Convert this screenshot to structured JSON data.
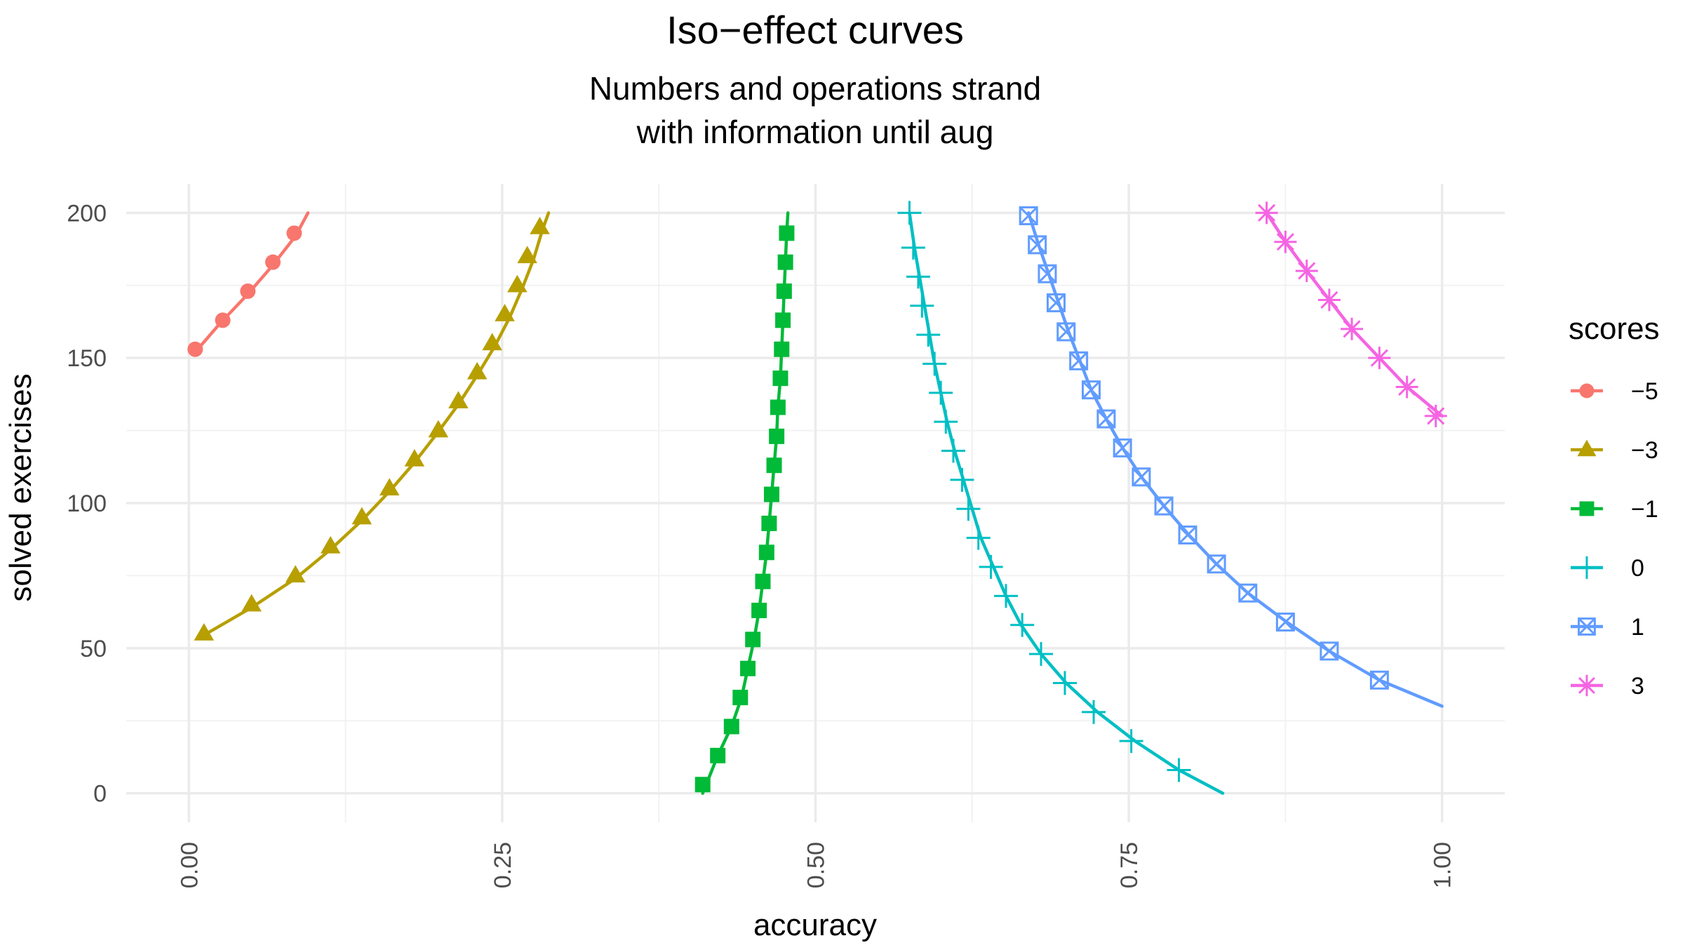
{
  "chart_data": {
    "type": "line",
    "title": "Iso−effect curves",
    "subtitle_lines": [
      "Numbers and operations strand",
      "with information until aug"
    ],
    "xlabel": "accuracy",
    "ylabel": "solved exercises",
    "xlim": [
      -0.05,
      1.05
    ],
    "ylim": [
      -10,
      210
    ],
    "x_ticks": [
      0.0,
      0.25,
      0.5,
      0.75,
      1.0
    ],
    "x_tick_labels": [
      "0.00",
      "0.25",
      "0.50",
      "0.75",
      "1.00"
    ],
    "y_ticks": [
      0,
      50,
      100,
      150,
      200
    ],
    "y_tick_labels": [
      "0",
      "50",
      "100",
      "150",
      "200"
    ],
    "grid": true,
    "legend": {
      "title": "scores",
      "position": "right"
    },
    "series": [
      {
        "name": "−5",
        "color": "#F8766D",
        "marker": "circle",
        "line": [
          [
            0.005,
            152
          ],
          [
            0.025,
            162
          ],
          [
            0.047,
            172
          ],
          [
            0.067,
            182
          ],
          [
            0.085,
            192
          ],
          [
            0.095,
            200
          ]
        ],
        "points": [
          [
            0.005,
            153
          ],
          [
            0.027,
            163
          ],
          [
            0.047,
            173
          ],
          [
            0.067,
            183
          ],
          [
            0.084,
            193
          ]
        ]
      },
      {
        "name": "−3",
        "color": "#B79F00",
        "marker": "triangle",
        "line": [
          [
            0.01,
            54
          ],
          [
            0.05,
            64
          ],
          [
            0.085,
            74
          ],
          [
            0.113,
            84
          ],
          [
            0.138,
            94
          ],
          [
            0.16,
            104
          ],
          [
            0.18,
            114
          ],
          [
            0.198,
            124
          ],
          [
            0.215,
            134
          ],
          [
            0.23,
            144
          ],
          [
            0.244,
            154
          ],
          [
            0.256,
            164
          ],
          [
            0.266,
            174
          ],
          [
            0.275,
            184
          ],
          [
            0.282,
            194
          ],
          [
            0.287,
            200
          ]
        ],
        "points": [
          [
            0.012,
            55
          ],
          [
            0.05,
            65
          ],
          [
            0.085,
            75
          ],
          [
            0.113,
            85
          ],
          [
            0.138,
            95
          ],
          [
            0.16,
            105
          ],
          [
            0.18,
            115
          ],
          [
            0.199,
            125
          ],
          [
            0.215,
            135
          ],
          [
            0.23,
            145
          ],
          [
            0.242,
            155
          ],
          [
            0.252,
            165
          ],
          [
            0.262,
            175
          ],
          [
            0.27,
            185
          ],
          [
            0.28,
            195
          ]
        ]
      },
      {
        "name": "−1",
        "color": "#00BA38",
        "marker": "square",
        "line": [
          [
            0.41,
            0
          ],
          [
            0.422,
            13
          ],
          [
            0.433,
            23
          ],
          [
            0.441,
            33
          ],
          [
            0.446,
            43
          ],
          [
            0.451,
            53
          ],
          [
            0.455,
            63
          ],
          [
            0.458,
            73
          ],
          [
            0.461,
            83
          ],
          [
            0.463,
            93
          ],
          [
            0.465,
            103
          ],
          [
            0.467,
            113
          ],
          [
            0.469,
            123
          ],
          [
            0.47,
            133
          ],
          [
            0.472,
            143
          ],
          [
            0.473,
            153
          ],
          [
            0.474,
            163
          ],
          [
            0.475,
            173
          ],
          [
            0.476,
            183
          ],
          [
            0.477,
            193
          ],
          [
            0.478,
            200
          ]
        ],
        "points": [
          [
            0.41,
            3
          ],
          [
            0.422,
            13
          ],
          [
            0.433,
            23
          ],
          [
            0.44,
            33
          ],
          [
            0.446,
            43
          ],
          [
            0.45,
            53
          ],
          [
            0.455,
            63
          ],
          [
            0.458,
            73
          ],
          [
            0.461,
            83
          ],
          [
            0.463,
            93
          ],
          [
            0.465,
            103
          ],
          [
            0.467,
            113
          ],
          [
            0.469,
            123
          ],
          [
            0.47,
            133
          ],
          [
            0.472,
            143
          ],
          [
            0.473,
            153
          ],
          [
            0.474,
            163
          ],
          [
            0.475,
            173
          ],
          [
            0.476,
            183
          ],
          [
            0.477,
            193
          ]
        ]
      },
      {
        "name": "0",
        "color": "#00BFC4",
        "marker": "plus",
        "line": [
          [
            0.575,
            200
          ],
          [
            0.579,
            188
          ],
          [
            0.583,
            178
          ],
          [
            0.587,
            168
          ],
          [
            0.591,
            158
          ],
          [
            0.595,
            148
          ],
          [
            0.6,
            138
          ],
          [
            0.605,
            128
          ],
          [
            0.611,
            118
          ],
          [
            0.618,
            108
          ],
          [
            0.625,
            98
          ],
          [
            0.632,
            88
          ],
          [
            0.642,
            78
          ],
          [
            0.652,
            68
          ],
          [
            0.664,
            58
          ],
          [
            0.68,
            48
          ],
          [
            0.7,
            38
          ],
          [
            0.725,
            28
          ],
          [
            0.755,
            18
          ],
          [
            0.79,
            8
          ],
          [
            0.825,
            0
          ]
        ],
        "points": [
          [
            0.575,
            200
          ],
          [
            0.578,
            188
          ],
          [
            0.582,
            178
          ],
          [
            0.585,
            168
          ],
          [
            0.59,
            158
          ],
          [
            0.595,
            148
          ],
          [
            0.6,
            138
          ],
          [
            0.604,
            128
          ],
          [
            0.61,
            118
          ],
          [
            0.617,
            108
          ],
          [
            0.622,
            98
          ],
          [
            0.63,
            88
          ],
          [
            0.64,
            78
          ],
          [
            0.652,
            68
          ],
          [
            0.665,
            58
          ],
          [
            0.68,
            48
          ],
          [
            0.699,
            38
          ],
          [
            0.722,
            28
          ],
          [
            0.752,
            18
          ],
          [
            0.79,
            8
          ]
        ]
      },
      {
        "name": "1",
        "color": "#619CFF",
        "marker": "boxx",
        "line": [
          [
            0.67,
            200
          ],
          [
            0.678,
            189
          ],
          [
            0.686,
            179
          ],
          [
            0.694,
            169
          ],
          [
            0.702,
            159
          ],
          [
            0.711,
            149
          ],
          [
            0.72,
            139
          ],
          [
            0.732,
            129
          ],
          [
            0.745,
            119
          ],
          [
            0.76,
            109
          ],
          [
            0.778,
            99
          ],
          [
            0.798,
            89
          ],
          [
            0.82,
            79
          ],
          [
            0.845,
            69
          ],
          [
            0.876,
            59
          ],
          [
            0.91,
            49
          ],
          [
            0.95,
            39
          ],
          [
            1.0,
            30
          ]
        ],
        "points": [
          [
            0.67,
            199
          ],
          [
            0.677,
            189
          ],
          [
            0.685,
            179
          ],
          [
            0.692,
            169
          ],
          [
            0.7,
            159
          ],
          [
            0.71,
            149
          ],
          [
            0.72,
            139
          ],
          [
            0.732,
            129
          ],
          [
            0.745,
            119
          ],
          [
            0.76,
            109
          ],
          [
            0.778,
            99
          ],
          [
            0.797,
            89
          ],
          [
            0.82,
            79
          ],
          [
            0.845,
            69
          ],
          [
            0.875,
            59
          ],
          [
            0.91,
            49
          ],
          [
            0.95,
            39
          ]
        ]
      },
      {
        "name": "3",
        "color": "#F564E3",
        "marker": "star",
        "line": [
          [
            0.86,
            200
          ],
          [
            0.875,
            190
          ],
          [
            0.892,
            180
          ],
          [
            0.91,
            170
          ],
          [
            0.928,
            160
          ],
          [
            0.95,
            150
          ],
          [
            0.972,
            140
          ],
          [
            1.0,
            130
          ]
        ],
        "points": [
          [
            0.86,
            200
          ],
          [
            0.875,
            190
          ],
          [
            0.892,
            180
          ],
          [
            0.91,
            170
          ],
          [
            0.928,
            160
          ],
          [
            0.95,
            150
          ],
          [
            0.972,
            140
          ],
          [
            0.995,
            130
          ]
        ]
      }
    ]
  }
}
